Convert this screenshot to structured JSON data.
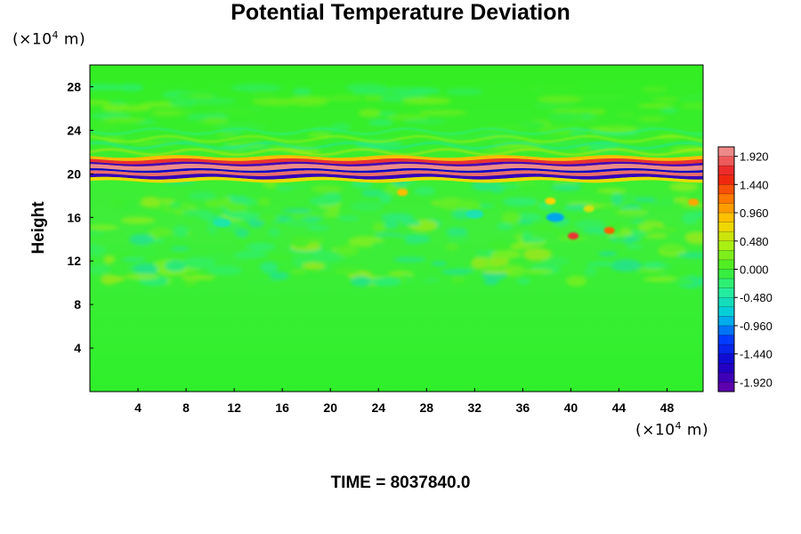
{
  "chart_data": {
    "type": "heatmap",
    "title": "Potential Temperature Deviation",
    "ylabel": "Height",
    "y_unit": {
      "prefix": "(×10",
      "exp": "4",
      "suffix": " m)"
    },
    "x_unit": {
      "prefix": "(×10",
      "exp": "4",
      "suffix": " m)"
    },
    "xlim": [
      0,
      51
    ],
    "ylim": [
      0,
      30
    ],
    "x_ticks": [
      4,
      8,
      12,
      16,
      20,
      24,
      28,
      32,
      36,
      40,
      44,
      48
    ],
    "y_ticks": [
      4,
      8,
      12,
      16,
      20,
      24,
      28
    ],
    "colorbar": {
      "range": [
        -2.08,
        2.08
      ],
      "tick_labels": [
        "1.920",
        "1.440",
        "0.960",
        "0.480",
        "0.000",
        "-0.480",
        "-0.960",
        "-1.440",
        "-1.920"
      ],
      "tick_values": [
        1.92,
        1.44,
        0.96,
        0.48,
        0.0,
        -0.48,
        -0.96,
        -1.44,
        -1.92
      ]
    },
    "features": [
      {
        "desc": "strong positive/negative banded layer",
        "y": [
          19.5,
          21.5
        ],
        "x": [
          0,
          51
        ]
      },
      {
        "desc": "warm blobs",
        "x": [
          39.5,
          44
        ],
        "y": [
          13.5,
          15
        ]
      }
    ],
    "grid": false
  },
  "footer": {
    "time_label": "TIME = 8037840.0"
  },
  "colors": {
    "background_field": "#22ee22",
    "max": "#f0a0a0",
    "min": "#6a00a8"
  }
}
